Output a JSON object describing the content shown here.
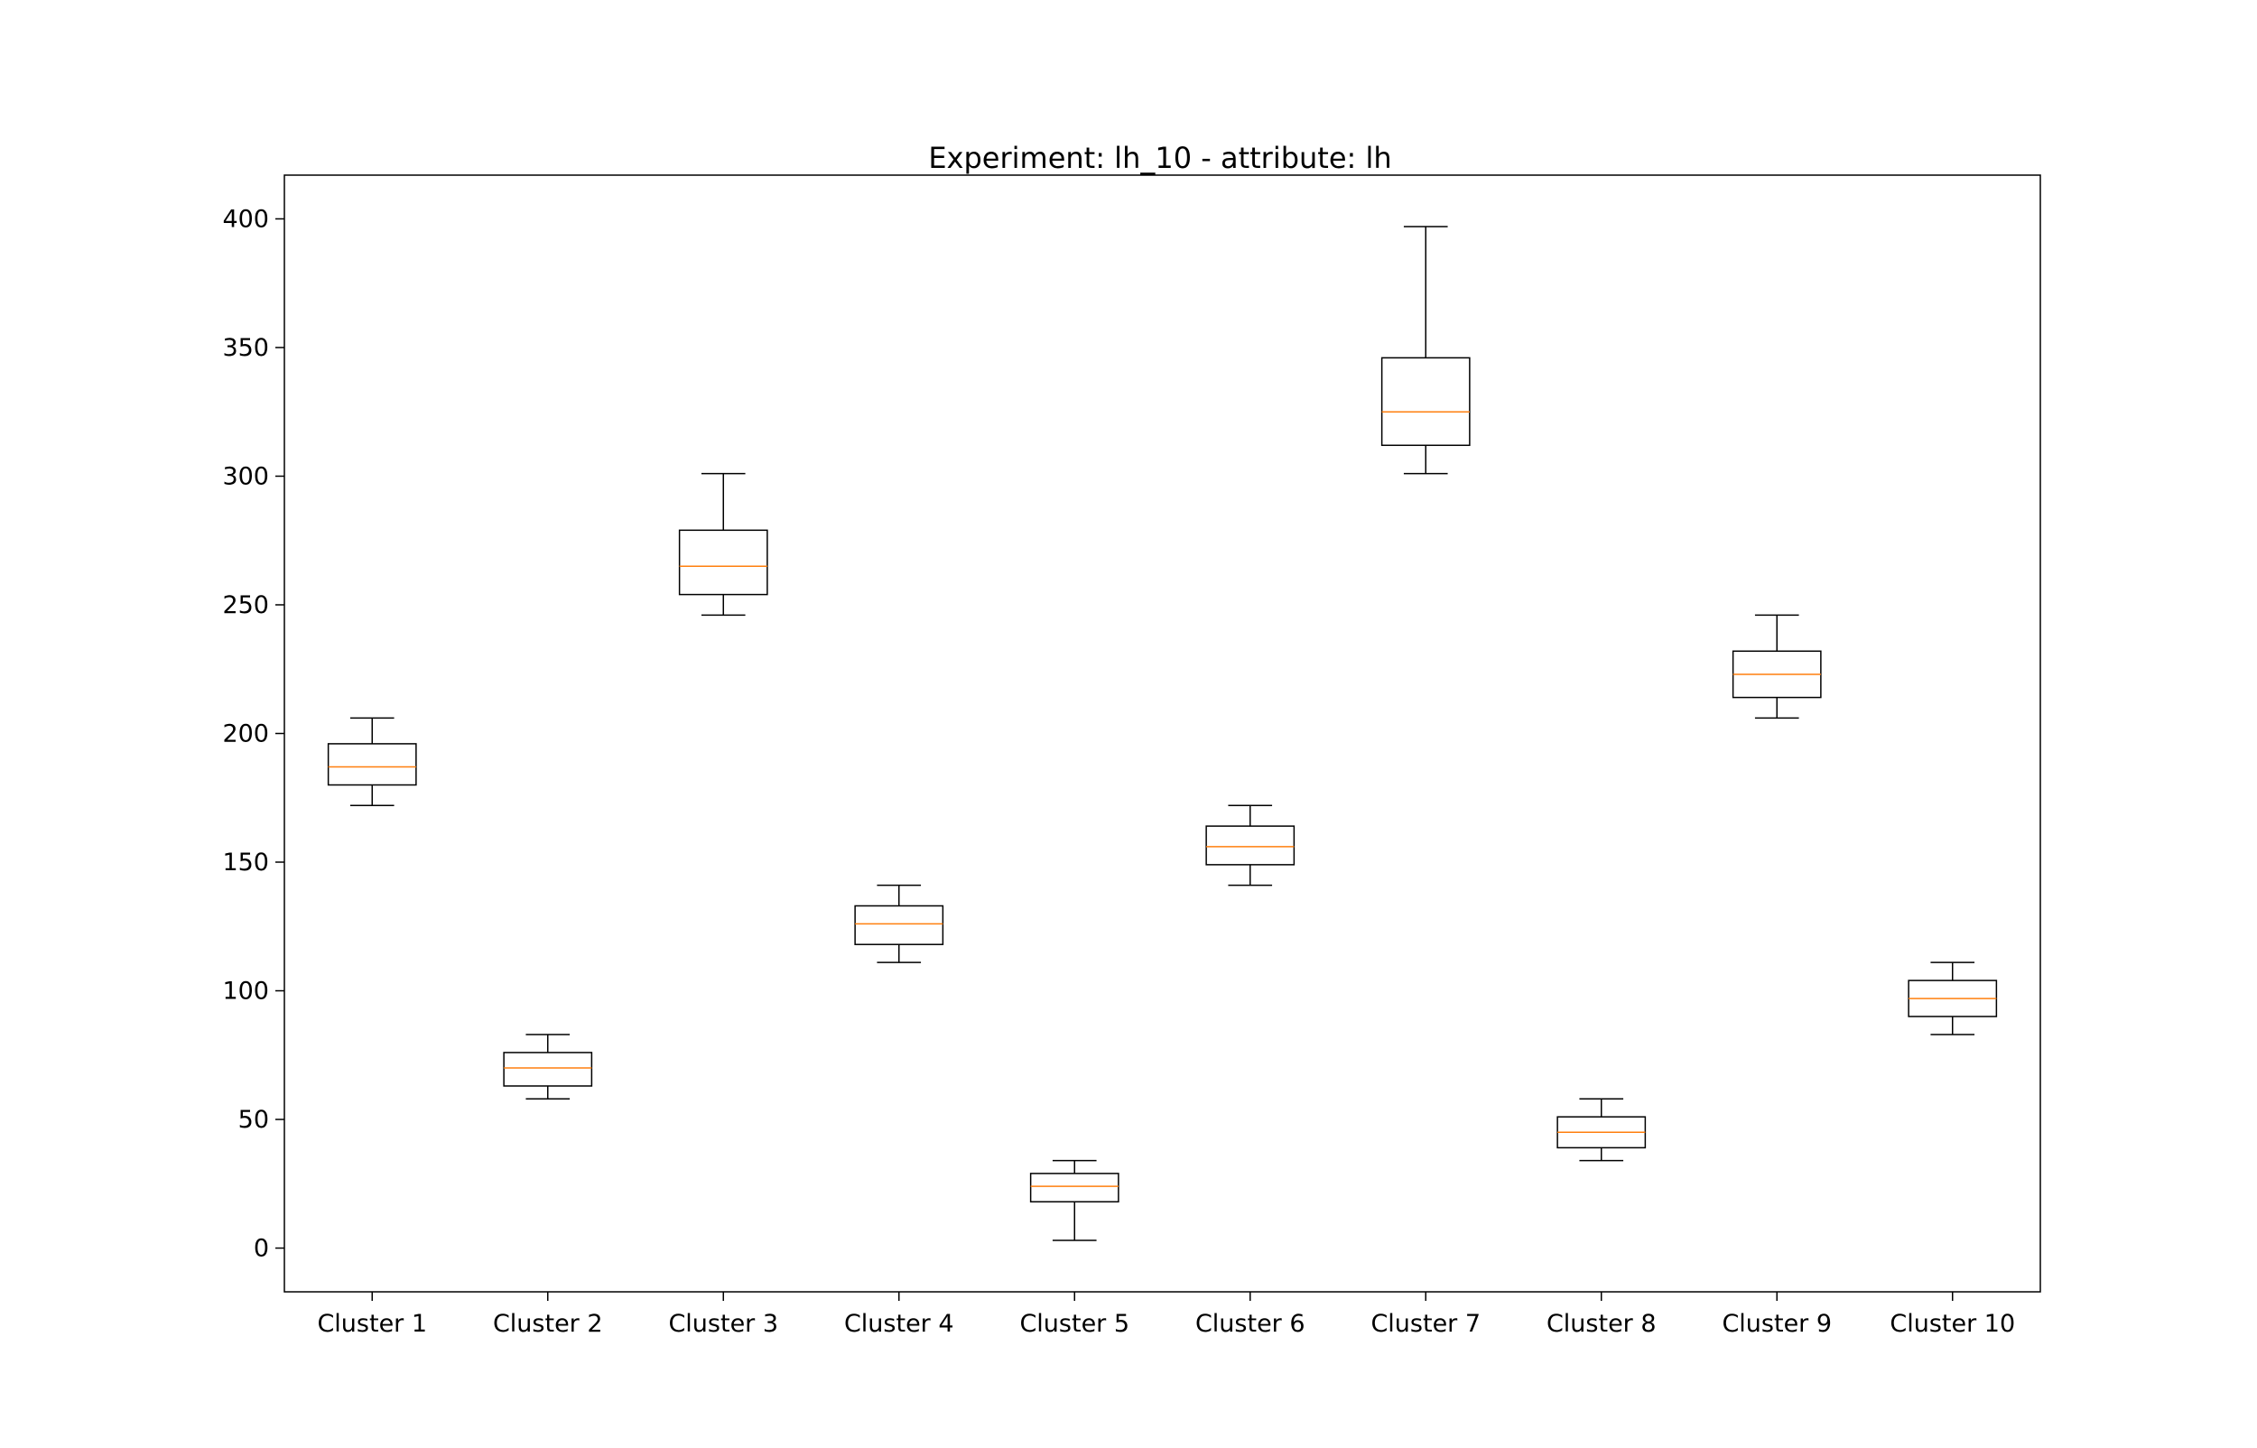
{
  "chart_data": {
    "type": "boxplot",
    "title": "Experiment: lh_10 - attribute: lh",
    "xlabel": "",
    "ylabel": "",
    "ylim": [
      -17,
      417
    ],
    "yticks": [
      0,
      50,
      100,
      150,
      200,
      250,
      300,
      350,
      400
    ],
    "grid": false,
    "legend": "none",
    "colors": {
      "box": "#000000",
      "median": "#ff7f0e",
      "axes": "#000000"
    },
    "categories": [
      "Cluster 1",
      "Cluster 2",
      "Cluster 3",
      "Cluster 4",
      "Cluster 5",
      "Cluster 6",
      "Cluster 7",
      "Cluster 8",
      "Cluster 9",
      "Cluster 10"
    ],
    "boxes": [
      {
        "whislo": 172,
        "q1": 180,
        "med": 187,
        "q3": 196,
        "whishi": 206
      },
      {
        "whislo": 58,
        "q1": 63,
        "med": 70,
        "q3": 76,
        "whishi": 83
      },
      {
        "whislo": 246,
        "q1": 254,
        "med": 265,
        "q3": 279,
        "whishi": 301
      },
      {
        "whislo": 111,
        "q1": 118,
        "med": 126,
        "q3": 133,
        "whishi": 141
      },
      {
        "whislo": 3,
        "q1": 18,
        "med": 24,
        "q3": 29,
        "whishi": 34
      },
      {
        "whislo": 141,
        "q1": 149,
        "med": 156,
        "q3": 164,
        "whishi": 172
      },
      {
        "whislo": 301,
        "q1": 312,
        "med": 325,
        "q3": 346,
        "whishi": 397
      },
      {
        "whislo": 34,
        "q1": 39,
        "med": 45,
        "q3": 51,
        "whishi": 58
      },
      {
        "whislo": 206,
        "q1": 214,
        "med": 223,
        "q3": 232,
        "whishi": 246
      },
      {
        "whislo": 83,
        "q1": 90,
        "med": 97,
        "q3": 104,
        "whishi": 111
      }
    ]
  }
}
